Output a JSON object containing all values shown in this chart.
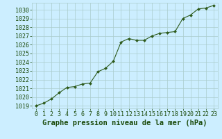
{
  "x": [
    0,
    1,
    2,
    3,
    4,
    5,
    6,
    7,
    8,
    9,
    10,
    11,
    12,
    13,
    14,
    15,
    16,
    17,
    18,
    19,
    20,
    21,
    22,
    23
  ],
  "y": [
    1019.0,
    1019.3,
    1019.8,
    1020.5,
    1021.1,
    1021.2,
    1021.5,
    1021.6,
    1022.9,
    1023.3,
    1024.1,
    1026.3,
    1026.7,
    1026.5,
    1026.5,
    1027.0,
    1027.3,
    1027.4,
    1027.5,
    1029.0,
    1029.4,
    1030.1,
    1030.2,
    1030.5
  ],
  "line_color": "#2d5a1b",
  "marker_color": "#2d5a1b",
  "bg_color": "#cceeff",
  "grid_color": "#aacccc",
  "title": "Graphe pression niveau de la mer (hPa)",
  "ylabel_range": [
    1019,
    1030
  ],
  "ylabel_step": 1,
  "xlim": [
    -0.5,
    23.5
  ],
  "ylim": [
    1018.7,
    1030.8
  ],
  "title_fontsize": 7.5,
  "tick_fontsize": 6,
  "title_color": "#1a4a0a",
  "tick_color": "#1a4a0a"
}
